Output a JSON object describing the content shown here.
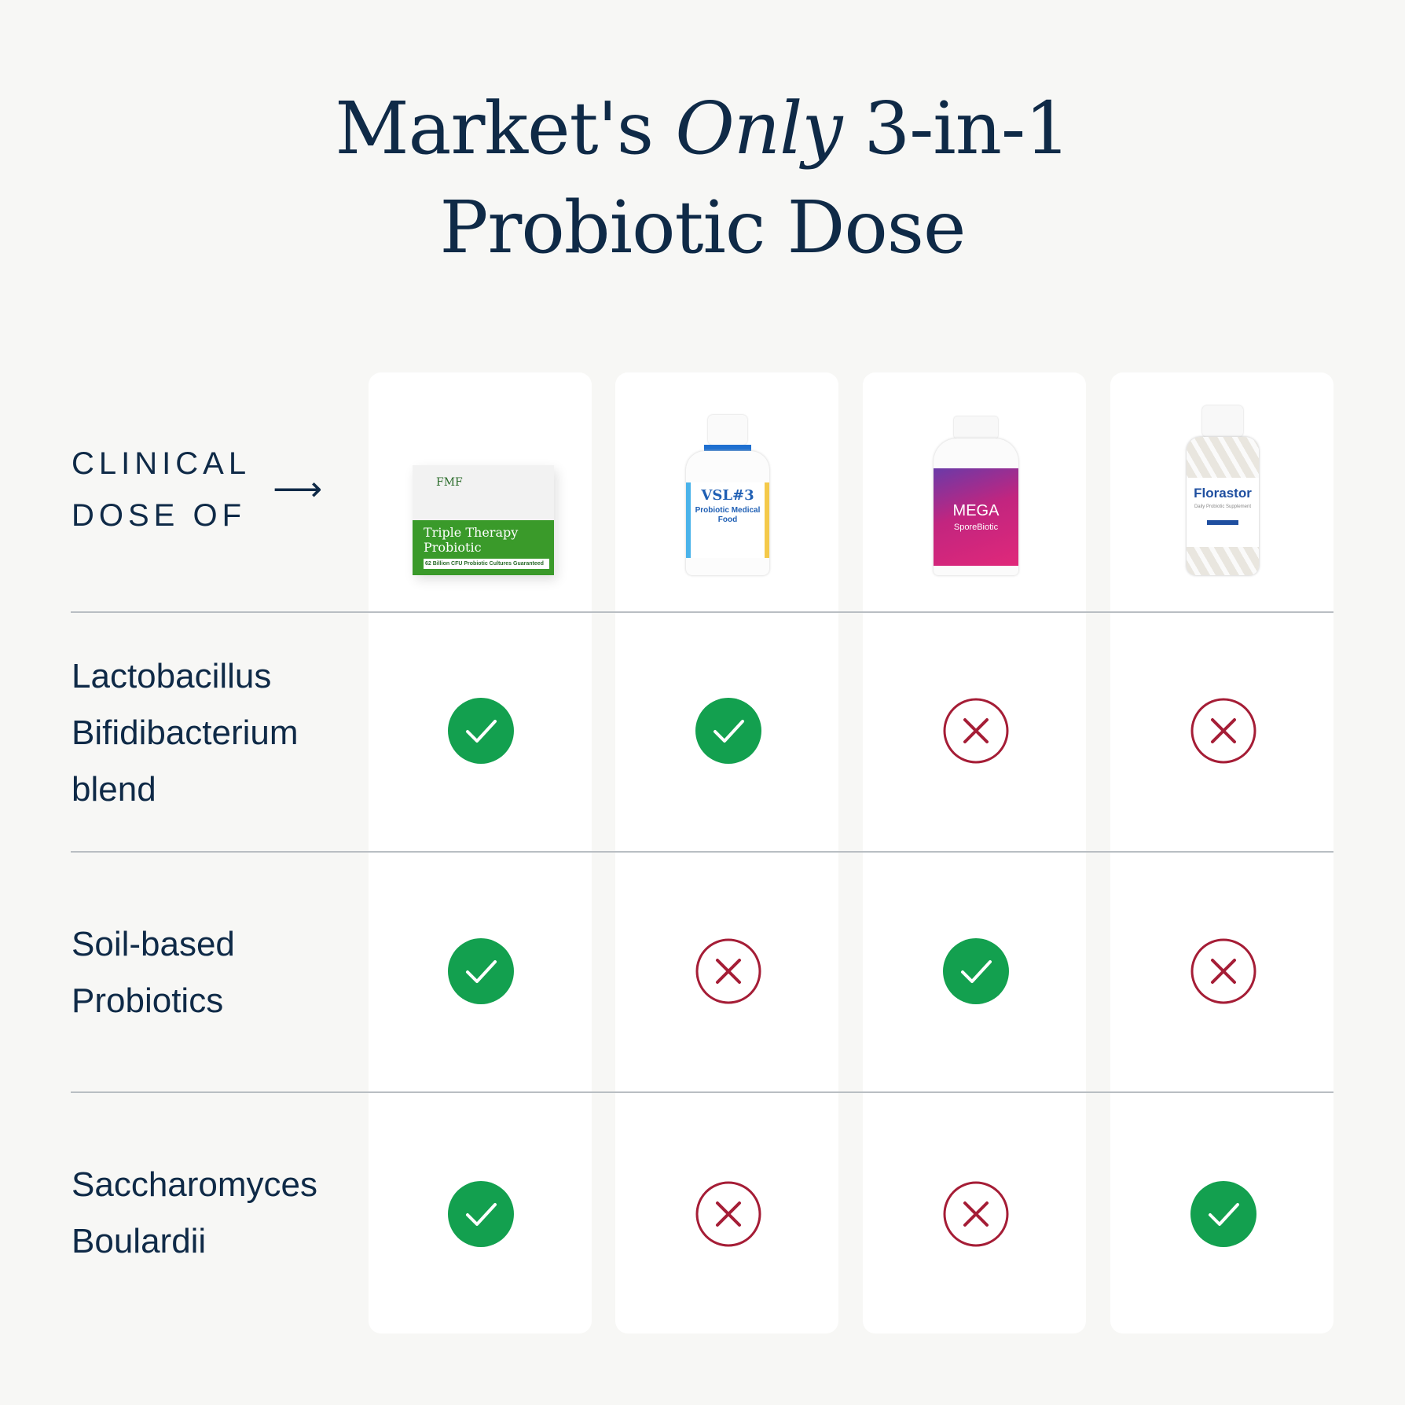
{
  "title": {
    "line1_pre": "Market's ",
    "line1_em": "Only",
    "line1_post": " 3-in-1",
    "line2": "Probiotic Dose"
  },
  "header": {
    "line1": "CLINICAL",
    "line2": "DOSE OF",
    "arrow": "⟶"
  },
  "products": [
    {
      "brand": "FMF",
      "name": "Triple Therapy Probiotic",
      "sub": "62 Billion CFU Probiotic Cultures Guaranteed",
      "color": "#3a9a2a"
    },
    {
      "brand": "VSL#3",
      "name": "Probiotic Medical Food",
      "color": "#1f5fb4"
    },
    {
      "brand": "MEGA",
      "name": "SporeBiotic",
      "color": "#c2257f"
    },
    {
      "brand": "Florastor",
      "name": "Daily Probiotic Supplement",
      "color": "#1f4fa0"
    }
  ],
  "rows": [
    {
      "label": [
        "Lactobacillus",
        "Bifidibacterium",
        "blend"
      ],
      "values": [
        true,
        true,
        false,
        false
      ]
    },
    {
      "label": [
        "Soil-based",
        "Probiotics"
      ],
      "values": [
        true,
        false,
        true,
        false
      ]
    },
    {
      "label": [
        "Saccharomyces",
        "Boulardii"
      ],
      "values": [
        true,
        false,
        false,
        true
      ]
    }
  ],
  "colors": {
    "check": "#13a04f",
    "cross": "#a51d36",
    "text": "#0f2a47"
  }
}
